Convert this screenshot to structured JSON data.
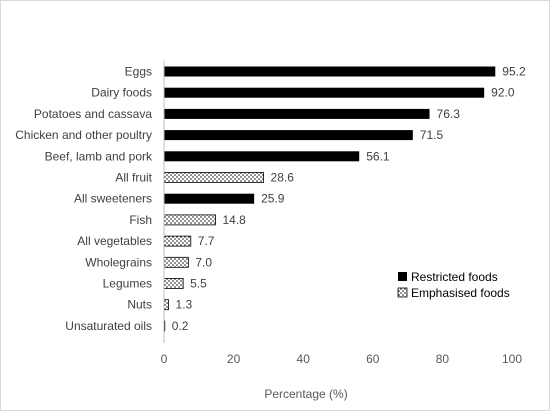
{
  "chart_data": {
    "type": "bar",
    "orientation": "horizontal",
    "categories": [
      "Eggs",
      "Dairy foods",
      "Potatoes and cassava",
      "Chicken and other poultry",
      "Beef, lamb and pork",
      "All fruit",
      "All sweeteners",
      "Fish",
      "All vegetables",
      "Wholegrains",
      "Legumes",
      "Nuts",
      "Unsaturated oils"
    ],
    "values": [
      95.2,
      92.0,
      76.3,
      71.5,
      56.1,
      28.6,
      25.9,
      14.8,
      7.7,
      7.0,
      5.5,
      1.3,
      0.2
    ],
    "value_labels": [
      "95.2",
      "92.0",
      "76.3",
      "71.5",
      "56.1",
      "28.6",
      "25.9",
      "14.8",
      "7.7",
      "7.0",
      "5.5",
      "1.3",
      "0.2"
    ],
    "group": [
      "restricted",
      "restricted",
      "restricted",
      "restricted",
      "restricted",
      "emphasised",
      "restricted",
      "emphasised",
      "emphasised",
      "emphasised",
      "emphasised",
      "emphasised",
      "emphasised"
    ],
    "series": [
      {
        "key": "restricted",
        "name": "Restricted foods",
        "color": "#000000",
        "pattern": "solid"
      },
      {
        "key": "emphasised",
        "name": "Emphasised foods",
        "color": "#000000",
        "pattern": "dotted"
      }
    ],
    "xlabel": "Percentage (%)",
    "xlim": [
      0,
      100
    ],
    "xticks": [
      0,
      20,
      40,
      60,
      80,
      100
    ],
    "tick_labels": [
      "0",
      "20",
      "40",
      "60",
      "80",
      "100"
    ],
    "grid": false,
    "legend_position": "right"
  }
}
